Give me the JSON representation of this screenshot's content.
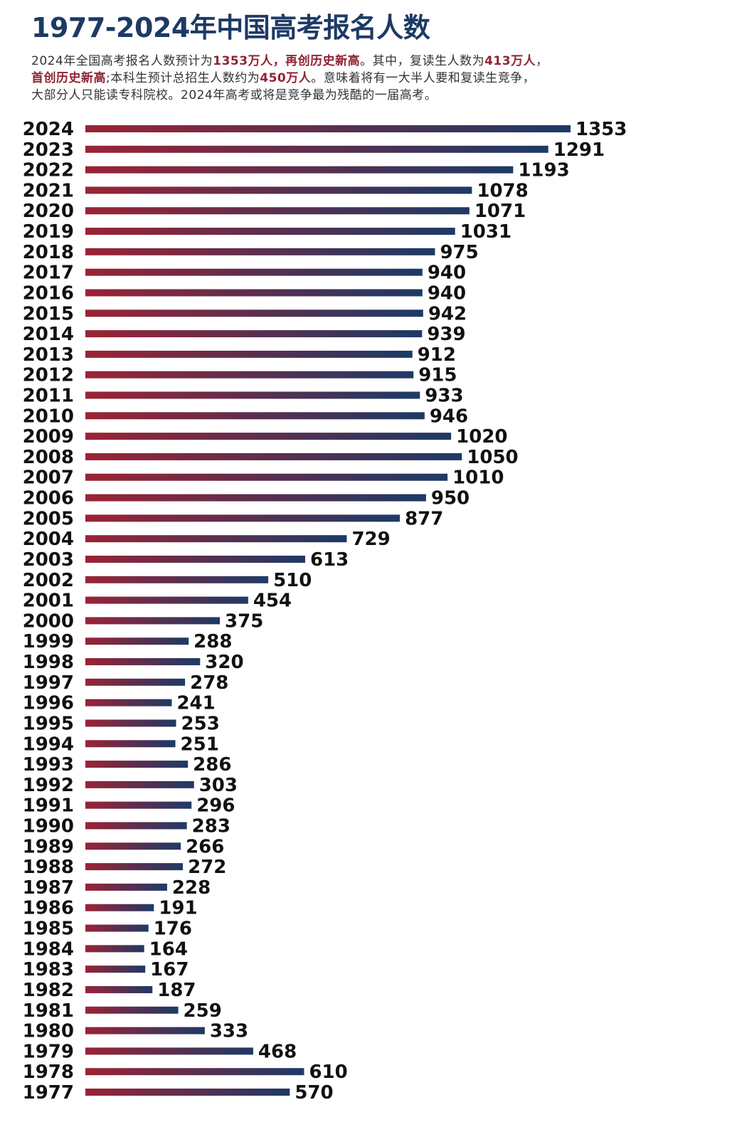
{
  "header": {
    "title": "1977-2024年中国高考报名人数",
    "intro": {
      "line1": [
        {
          "text": "2024年全国高考报名人数预计为",
          "hl": false
        },
        {
          "text": "1353万人，再创历史新高",
          "hl": true
        },
        {
          "text": "。其中，复读生人数为",
          "hl": false
        },
        {
          "text": "413万人",
          "hl": true
        },
        {
          "text": "，",
          "hl": false
        }
      ],
      "line2": [
        {
          "text": "首创历史新高",
          "hl": true
        },
        {
          "text": ";本科生预计总招生人数约为",
          "hl": false
        },
        {
          "text": "450万人",
          "hl": true
        },
        {
          "text": "。意味着将有一大半人要和复读生竞争，",
          "hl": false
        }
      ],
      "line3": [
        {
          "text": "大部分人只能读专科院校。2024年高考或将是竞争最为残酷的一届高考。",
          "hl": false
        }
      ]
    }
  },
  "colors": {
    "title": "#1d3a66",
    "highlight": "#8e2432",
    "bar_start": "#9b2335",
    "bar_end": "#1d3a66"
  },
  "chart_data": {
    "type": "bar",
    "orientation": "horizontal",
    "title": "",
    "xlabel": "",
    "ylabel": "",
    "xlim": [
      0,
      1353
    ],
    "grid": false,
    "legend": "none",
    "categories": [
      "2024",
      "2023",
      "2022",
      "2021",
      "2020",
      "2019",
      "2018",
      "2017",
      "2016",
      "2015",
      "2014",
      "2013",
      "2012",
      "2011",
      "2010",
      "2009",
      "2008",
      "2007",
      "2006",
      "2005",
      "2004",
      "2003",
      "2002",
      "2001",
      "2000",
      "1999",
      "1998",
      "1997",
      "1996",
      "1995",
      "1994",
      "1993",
      "1992",
      "1991",
      "1990",
      "1989",
      "1988",
      "1987",
      "1986",
      "1985",
      "1984",
      "1983",
      "1982",
      "1981",
      "1980",
      "1979",
      "1978",
      "1977"
    ],
    "values": [
      1353,
      1291,
      1193,
      1078,
      1071,
      1031,
      975,
      940,
      940,
      942,
      939,
      912,
      915,
      933,
      946,
      1020,
      1050,
      1010,
      950,
      877,
      729,
      613,
      510,
      454,
      375,
      288,
      320,
      278,
      241,
      253,
      251,
      286,
      303,
      296,
      283,
      266,
      272,
      228,
      191,
      176,
      164,
      167,
      187,
      259,
      333,
      468,
      610,
      570
    ]
  }
}
